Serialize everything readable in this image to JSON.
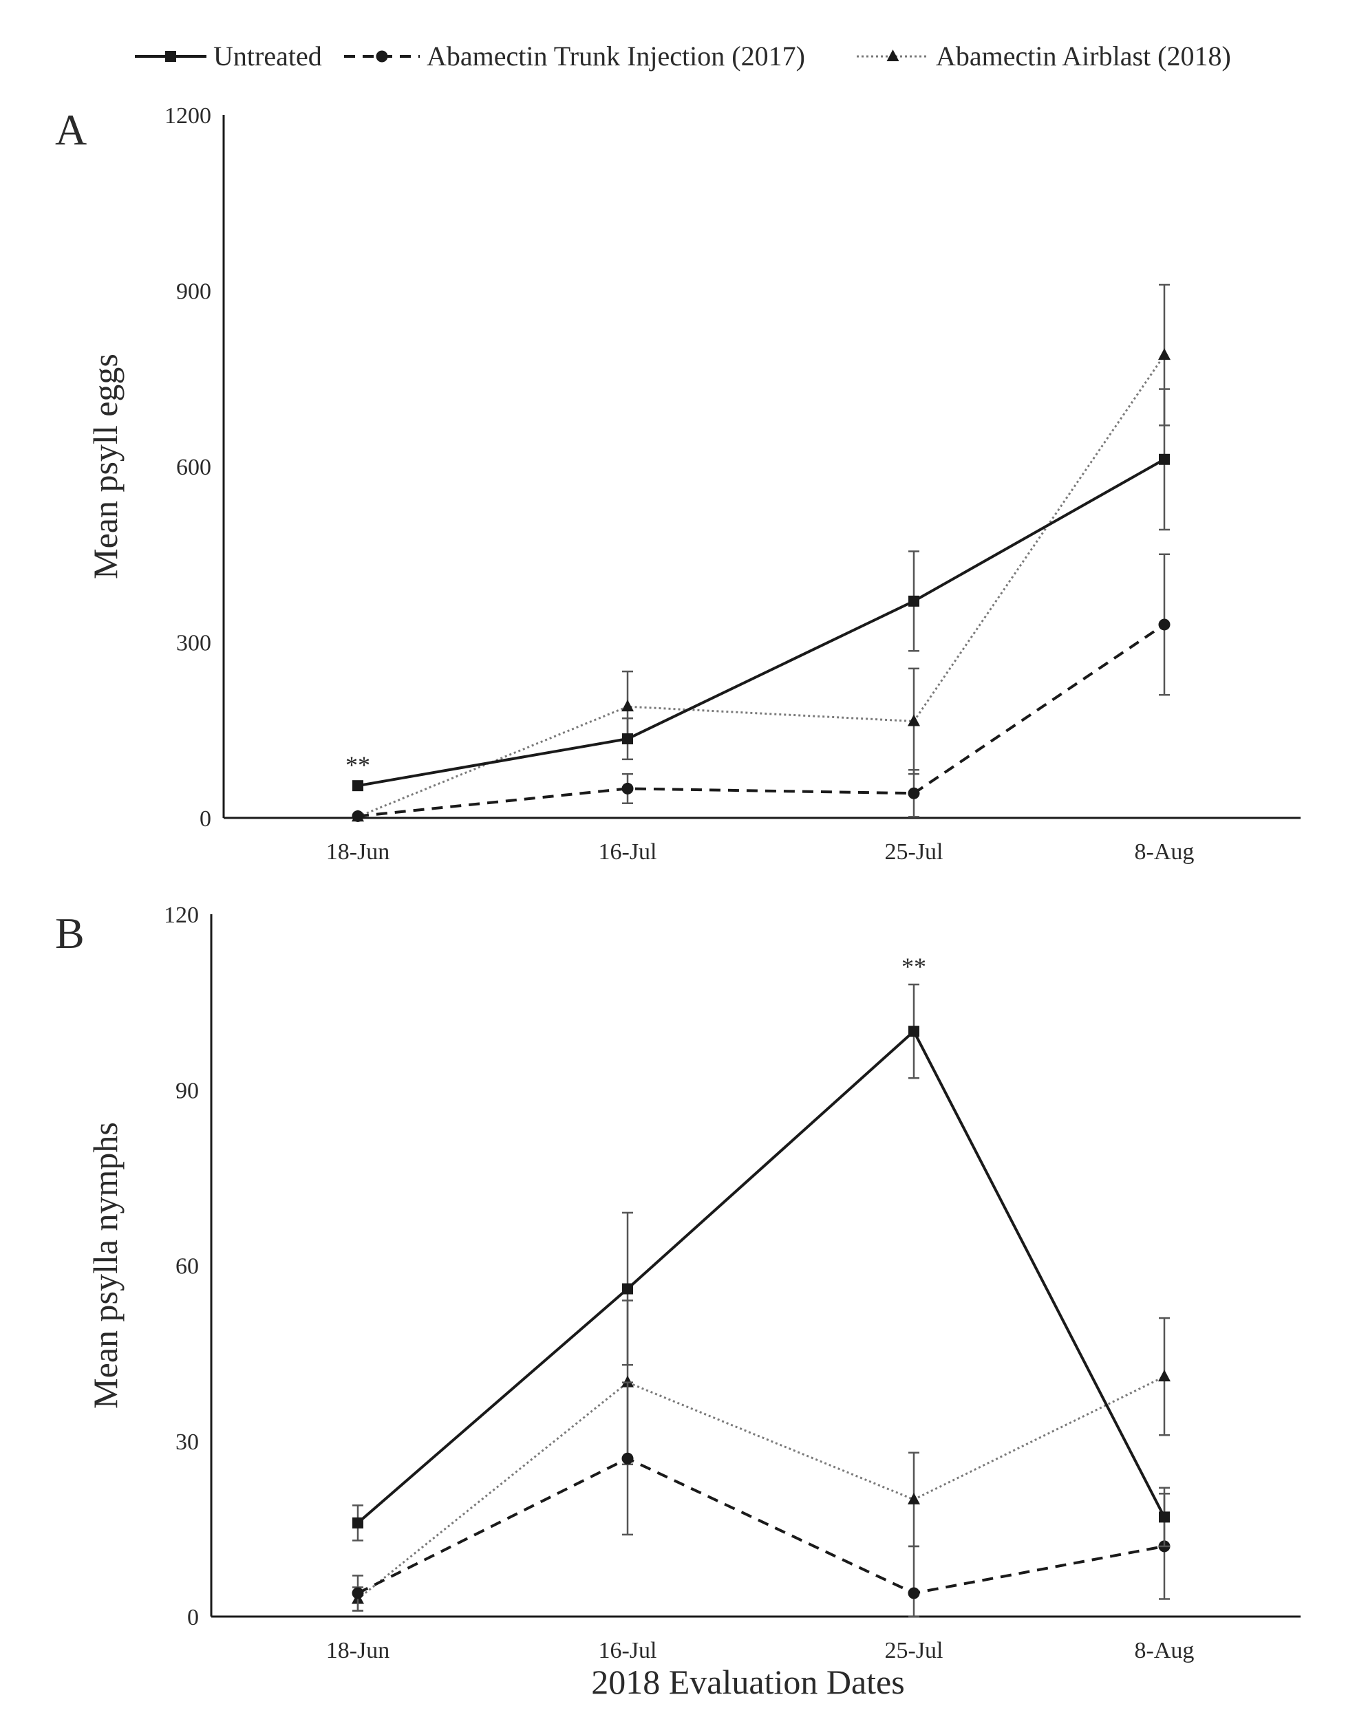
{
  "legend": [
    {
      "key": "untreated",
      "label": "Untreated",
      "line": "solid",
      "marker": "square"
    },
    {
      "key": "trunk",
      "label": "Abamectin Trunk Injection (2017)",
      "line": "dashed",
      "marker": "circle"
    },
    {
      "key": "airblast",
      "label": "Abamectin Airblast (2018)",
      "line": "dotted",
      "marker": "triangle"
    }
  ],
  "xlabel": "2018 Evaluation Dates",
  "chart_data": [
    {
      "type": "line",
      "panel": "A",
      "categories": [
        "18-Jun",
        "16-Jul",
        "25-Jul",
        "8-Aug"
      ],
      "ylabel": "Mean psyll eggs",
      "ylim": [
        0,
        1200
      ],
      "yticks": [
        "0",
        "300",
        "600",
        "900",
        "1200"
      ],
      "significance": [
        {
          "category": "18-Jun",
          "label": "**"
        }
      ],
      "series": [
        {
          "key": "untreated",
          "name": "Untreated",
          "values": [
            55,
            135,
            370,
            612
          ],
          "errors": [
            5,
            35,
            85,
            120
          ]
        },
        {
          "key": "trunk",
          "name": "Abamectin Trunk Injection (2017)",
          "values": [
            3,
            50,
            42,
            330
          ],
          "errors": [
            3,
            25,
            40,
            120
          ]
        },
        {
          "key": "airblast",
          "name": "Abamectin Airblast (2018)",
          "values": [
            2,
            190,
            165,
            790
          ],
          "errors": [
            2,
            60,
            90,
            120
          ]
        }
      ]
    },
    {
      "type": "line",
      "panel": "B",
      "categories": [
        "18-Jun",
        "16-Jul",
        "25-Jul",
        "8-Aug"
      ],
      "ylabel": "Mean psylla nymphs",
      "ylim": [
        0,
        120
      ],
      "yticks": [
        "0",
        "30",
        "60",
        "90",
        "120"
      ],
      "significance": [
        {
          "category": "25-Jul",
          "label": "**"
        }
      ],
      "series": [
        {
          "key": "untreated",
          "name": "Untreated",
          "values": [
            16,
            56,
            100,
            17
          ],
          "errors": [
            3,
            13,
            8,
            5
          ]
        },
        {
          "key": "trunk",
          "name": "Abamectin Trunk Injection (2017)",
          "values": [
            4,
            27,
            4,
            12
          ],
          "errors": [
            3,
            13,
            8,
            9
          ]
        },
        {
          "key": "airblast",
          "name": "Abamectin Airblast (2018)",
          "values": [
            3,
            40,
            20,
            41
          ],
          "errors": [
            2,
            14,
            8,
            10
          ]
        }
      ]
    }
  ]
}
